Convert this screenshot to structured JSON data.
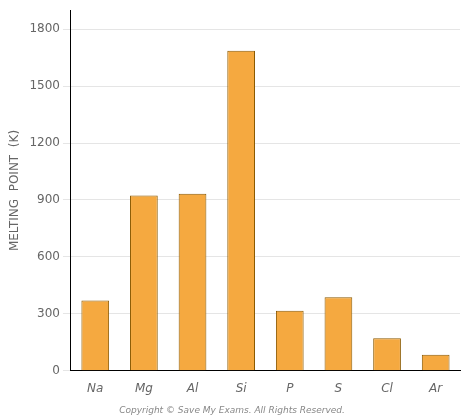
{
  "chart_data": {
    "type": "bar",
    "categories": [
      "Na",
      "Mg",
      "Al",
      "Si",
      "P",
      "S",
      "Cl",
      "Ar"
    ],
    "values": [
      371,
      923,
      933,
      1687,
      317,
      388,
      172,
      84
    ],
    "color": "#F5A940",
    "ylabel": "MELTING  POINT  (K)",
    "ylim": [
      0,
      1900
    ],
    "yticks": [
      0,
      300,
      600,
      900,
      1200,
      1500,
      1800
    ],
    "grid": true,
    "annotation": "Copyright © Save My Exams. All Rights Reserved."
  }
}
